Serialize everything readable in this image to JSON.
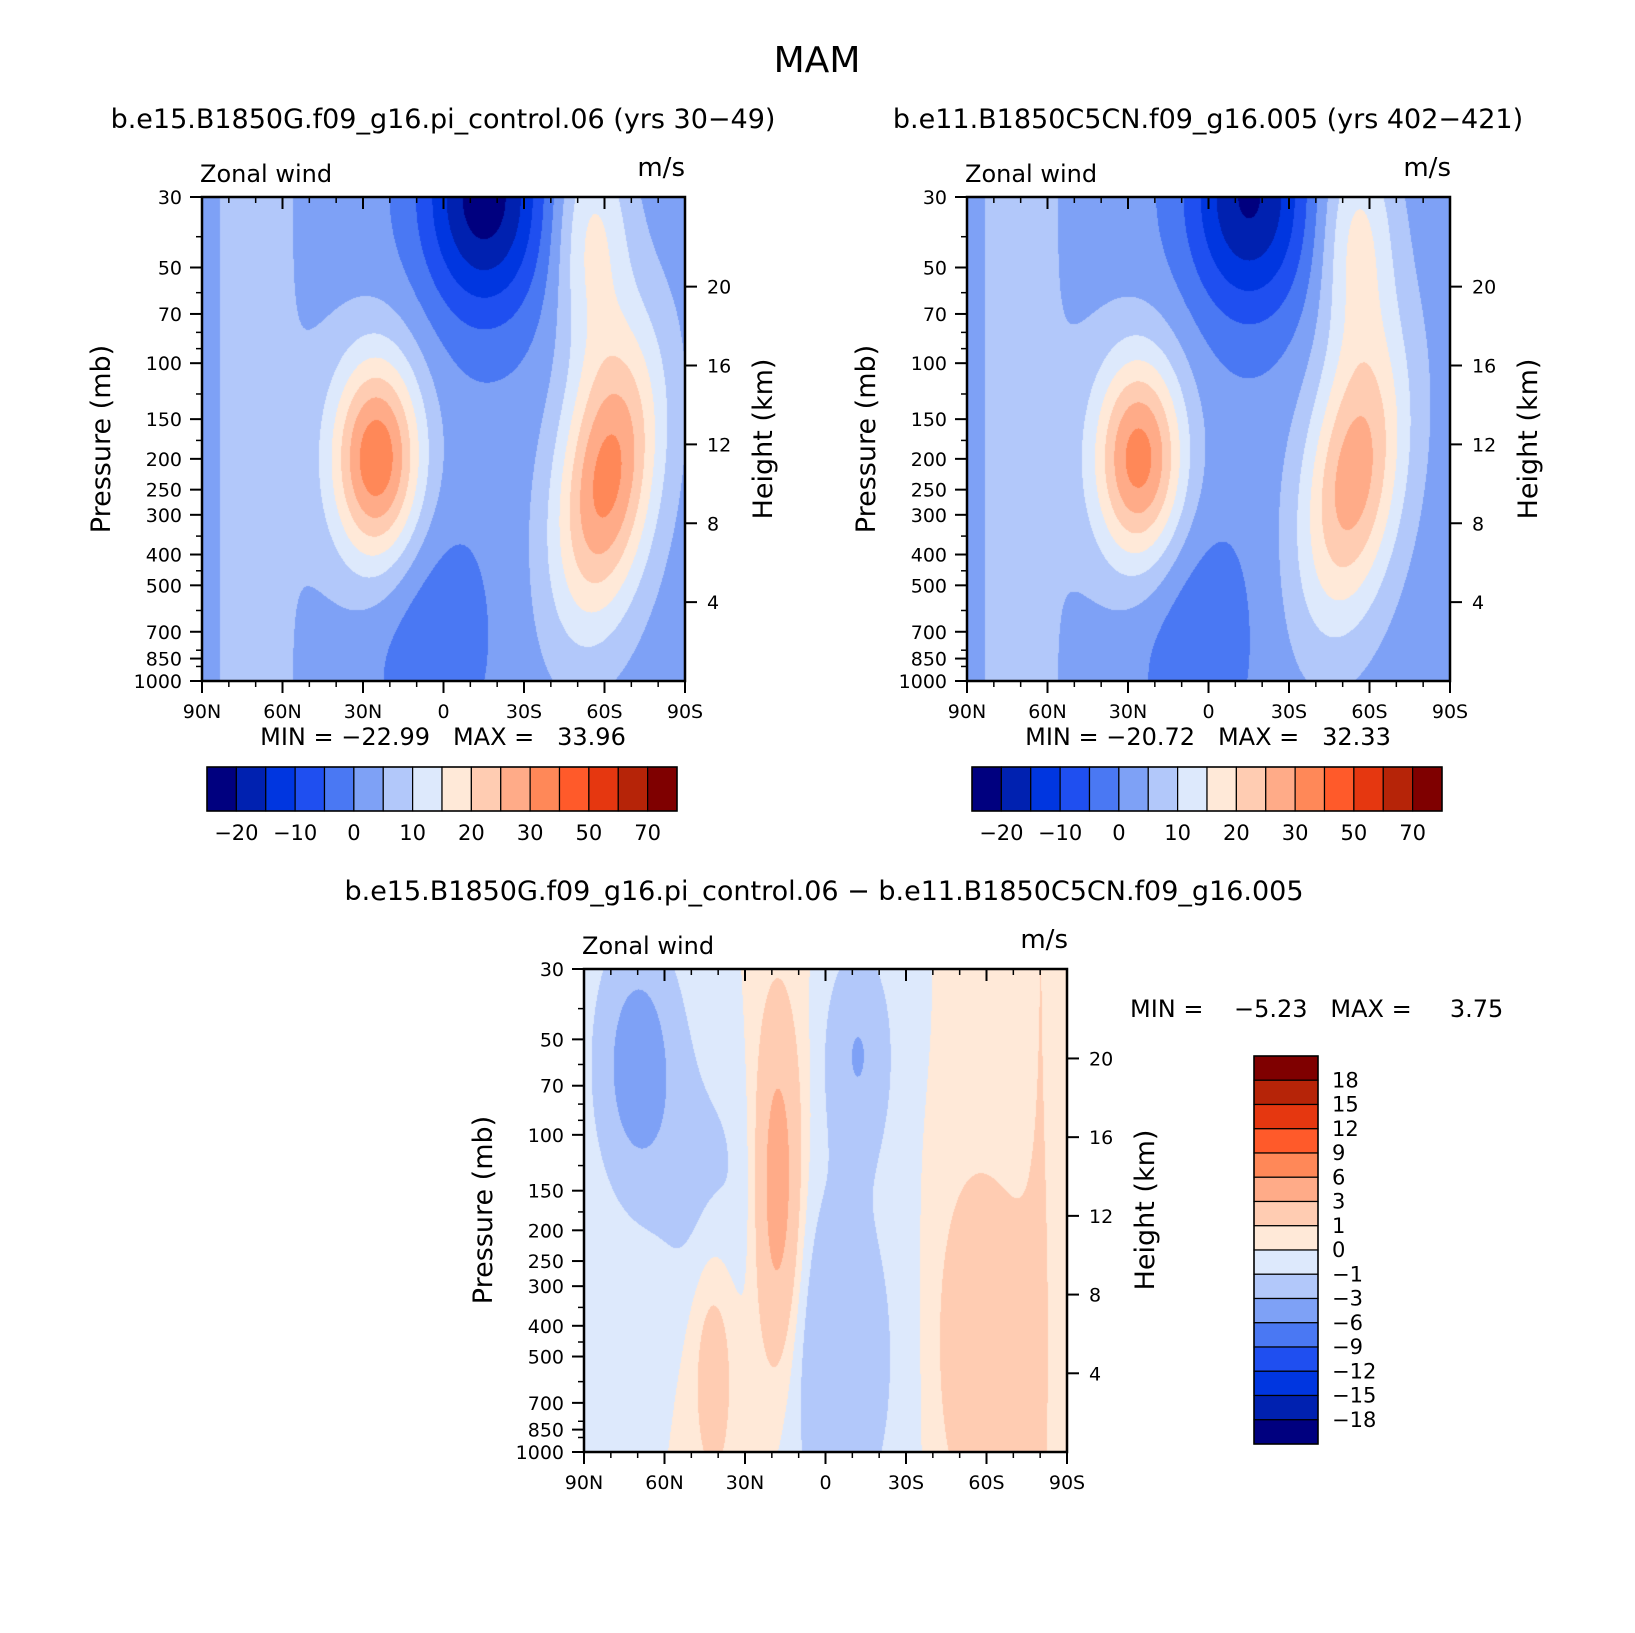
{
  "suptitle": "MAM",
  "colors": {
    "main": [
      "#00007F",
      "#0021B0",
      "#0036E0",
      "#1F4FF0",
      "#4A78F3",
      "#7EA1F6",
      "#B2C8FA",
      "#DDE9FC",
      "#FFE9D8",
      "#FFCCB2",
      "#FFAB88",
      "#FF8858",
      "#FF5A2A",
      "#E53710",
      "#B62408",
      "#7F0000"
    ],
    "diff": [
      "#00007F",
      "#0021B0",
      "#0036E0",
      "#1F4FF0",
      "#4A78F3",
      "#7EA1F6",
      "#B2C8FA",
      "#DDE9FC",
      "#FFE9D8",
      "#FFCCB2",
      "#FFAB88",
      "#FF8858",
      "#FF5A2A",
      "#E53710",
      "#B62408",
      "#7F0000"
    ]
  },
  "panels": [
    {
      "title": "b.e15.B1850G.f09_g16.pi_control.06 (yrs 30−49)",
      "left_label": "Zonal wind",
      "right_label": "m/s",
      "ylabel": "Pressure (mb)",
      "y2label": "Height (km)",
      "stats": "MIN = −22.99   MAX =   33.96",
      "features": {
        "jet_n_lat": 25,
        "jet_n_max": 33.96,
        "jet_s_lat": -52,
        "jet_s_max": 32,
        "strat_min": -22.99,
        "strat_min_lat": -15
      }
    },
    {
      "title": "b.e11.B1850C5CN.f09_g16.005 (yrs 402−421)",
      "left_label": "Zonal wind",
      "right_label": "m/s",
      "ylabel": "Pressure (mb)",
      "y2label": "Height (km)",
      "stats": "MIN = −20.72   MAX =   32.33",
      "features": {
        "jet_n_lat": 26,
        "jet_n_max": 32.33,
        "jet_s_lat": -45,
        "jet_s_max": 28,
        "strat_min": -20.72,
        "strat_min_lat": -15
      }
    }
  ],
  "main_colorbar": {
    "labels": [
      "−20",
      "−10",
      "0",
      "10",
      "20",
      "30",
      "50",
      "70"
    ],
    "levels": [
      -20,
      -15,
      -10,
      -5,
      0,
      5,
      10,
      15,
      20,
      25,
      30,
      40,
      50,
      60,
      70
    ]
  },
  "diff_panel": {
    "title": "b.e15.B1850G.f09_g16.pi_control.06 − b.e11.B1850C5CN.f09_g16.005",
    "left_label": "Zonal wind",
    "right_label": "m/s",
    "ylabel": "Pressure (mb)",
    "y2label": "Height (km)",
    "stats": "MIN =    −5.23   MAX =     3.75"
  },
  "diff_colorbar": {
    "labels": [
      "18",
      "15",
      "12",
      "9",
      "6",
      "3",
      "1",
      "0",
      "−1",
      "−3",
      "−6",
      "−9",
      "−12",
      "−15",
      "−18"
    ],
    "levels": [
      -18,
      -15,
      -12,
      -9,
      -6,
      -3,
      -1,
      0,
      1,
      3,
      6,
      9,
      12,
      15,
      18
    ]
  },
  "chart_data": [
    {
      "type": "heatmap",
      "title": "b.e15.B1850G.f09_g16.pi_control.06 (yrs 30−49)",
      "subtitle": "Zonal wind (m/s), MAM",
      "xlabel": "",
      "ylabel": "Pressure (mb)",
      "y2label": "Height (km)",
      "x_ticks": [
        "90N",
        "60N",
        "30N",
        "0",
        "30S",
        "60S",
        "90S"
      ],
      "y_ticks": [
        "30",
        "50",
        "70",
        "100",
        "150",
        "200",
        "250",
        "300",
        "400",
        "500",
        "700",
        "850",
        "1000"
      ],
      "y2_ticks": [
        "4",
        "8",
        "12",
        "16",
        "20"
      ],
      "xlim": [
        90,
        -90
      ],
      "ylim": [
        1000,
        30
      ],
      "min": -22.99,
      "max": 33.96
    },
    {
      "type": "heatmap",
      "title": "b.e11.B1850C5CN.f09_g16.005 (yrs 402−421)",
      "subtitle": "Zonal wind (m/s), MAM",
      "xlabel": "",
      "ylabel": "Pressure (mb)",
      "y2label": "Height (km)",
      "x_ticks": [
        "90N",
        "60N",
        "30N",
        "0",
        "30S",
        "60S",
        "90S"
      ],
      "y_ticks": [
        "30",
        "50",
        "70",
        "100",
        "150",
        "200",
        "250",
        "300",
        "400",
        "500",
        "700",
        "850",
        "1000"
      ],
      "y2_ticks": [
        "4",
        "8",
        "12",
        "16",
        "20"
      ],
      "xlim": [
        90,
        -90
      ],
      "ylim": [
        1000,
        30
      ],
      "min": -20.72,
      "max": 32.33
    },
    {
      "type": "heatmap",
      "title": "b.e15.B1850G.f09_g16.pi_control.06 − b.e11.B1850C5CN.f09_g16.005",
      "subtitle": "Zonal wind difference (m/s), MAM",
      "xlabel": "",
      "ylabel": "Pressure (mb)",
      "y2label": "Height (km)",
      "x_ticks": [
        "90N",
        "60N",
        "30N",
        "0",
        "30S",
        "60S",
        "90S"
      ],
      "y_ticks": [
        "30",
        "50",
        "70",
        "100",
        "150",
        "200",
        "250",
        "300",
        "400",
        "500",
        "700",
        "850",
        "1000"
      ],
      "y2_ticks": [
        "4",
        "8",
        "12",
        "16",
        "20"
      ],
      "xlim": [
        90,
        -90
      ],
      "ylim": [
        1000,
        30
      ],
      "min": -5.23,
      "max": 3.75
    }
  ]
}
